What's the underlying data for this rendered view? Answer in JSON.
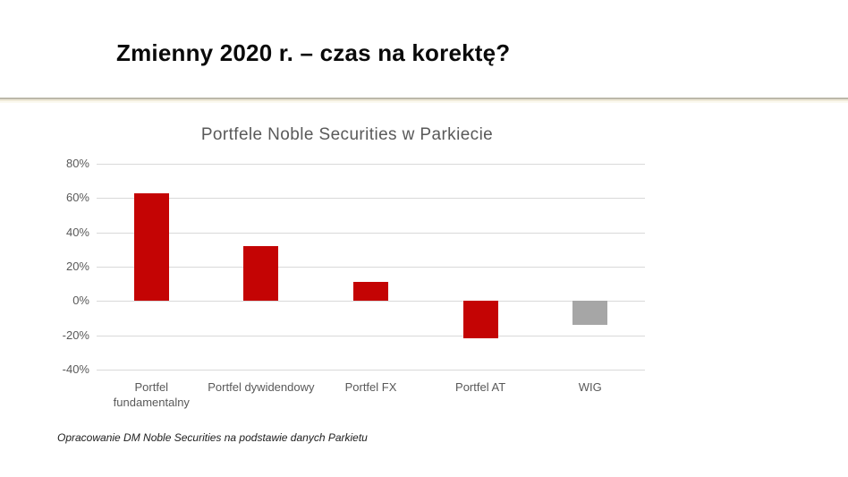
{
  "slide": {
    "title": "Zmienny 2020 r. – czas na korektę?"
  },
  "footer": {
    "text": "Opracowanie DM Noble Securities na podstawie danych Parkietu"
  },
  "colors": {
    "accent_red": "#c40404",
    "neutral_gray": "#a6a6a6",
    "grid": "#d9d9d9",
    "axis_text": "#595959",
    "divider": "#bcb8aa"
  },
  "chart_data": {
    "type": "bar",
    "title": "Portfele Noble Securities w Parkiecie",
    "categories": [
      "Portfel fundamentalny",
      "Portfel dywidendowy",
      "Portfel FX",
      "Portfel AT",
      "WIG"
    ],
    "values": [
      63,
      32,
      11,
      -22,
      -14
    ],
    "bar_colors": [
      "#c40404",
      "#c40404",
      "#c40404",
      "#c40404",
      "#a6a6a6"
    ],
    "y_tick_values": [
      80,
      60,
      40,
      20,
      0,
      -20,
      -40
    ],
    "y_tick_labels": [
      "80%",
      "60%",
      "40%",
      "20%",
      "0%",
      "-20%",
      "-40%"
    ],
    "ylim": [
      -40,
      80
    ],
    "xlabel": "",
    "ylabel": "",
    "grid": true,
    "legend_position": "none"
  }
}
